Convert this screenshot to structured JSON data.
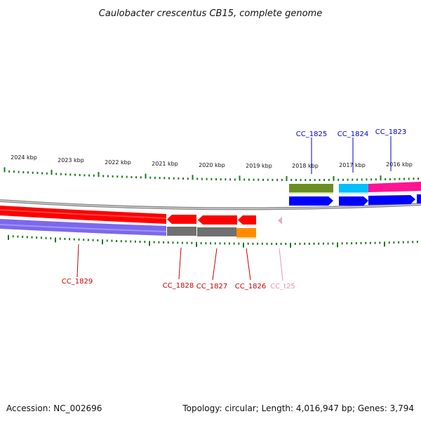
{
  "title": "Caulobacter crescentus CB15, complete genome",
  "footer": {
    "accession": "Accession: NC_002696",
    "topology": "Topology: circular; Length: 4,016,947 bp; Genes: 3,794"
  },
  "colors": {
    "tick": "#1a7a1a",
    "label_red": "#cc0000",
    "label_blue": "#0000cc",
    "label_pink": "#f090b0",
    "backbone": "#888888",
    "cds_red": "#ff0000",
    "cds_blue": "#0000ff",
    "cds_olive": "#6b8e23",
    "cds_cyan": "#00bfff",
    "cds_magenta": "#ff1493",
    "cds_purple": "#7b68ee",
    "cds_gray": "#707070",
    "cds_orange": "#ff8c00",
    "trna_pink": "#f4a6c8"
  },
  "kbp_labels": [
    {
      "text": "2024 kbp"
    },
    {
      "text": "2023 kbp"
    },
    {
      "text": "2022 kbp"
    },
    {
      "text": "2021 kbp"
    },
    {
      "text": "2020 kbp"
    },
    {
      "text": "2019 kbp"
    },
    {
      "text": "2018 kbp"
    },
    {
      "text": "2017 kbp"
    },
    {
      "text": "2016 kbp"
    }
  ],
  "gene_labels": {
    "cc_1825": "CC_1825",
    "cc_1824": "CC_1824",
    "cc_1823": "CC_1823",
    "cc_1829": "CC_1829",
    "cc_1828": "CC_1828",
    "cc_1827": "CC_1827",
    "cc_1826": "CC_1826",
    "cc_t25": "CC_t25"
  }
}
